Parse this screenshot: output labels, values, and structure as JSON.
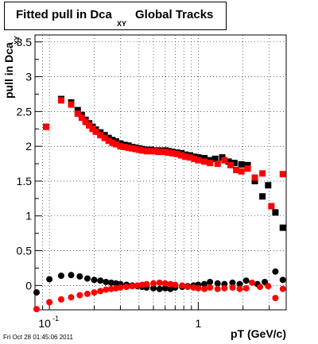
{
  "title": {
    "main": "Fitted pull in Dca",
    "subscript": "XY",
    "suffix": "Global Tracks"
  },
  "footer": "Fri Oct 28 01:45:06 2011",
  "chart_data": {
    "type": "scatter",
    "xlabel": "pT (GeV/c)",
    "ylabel": "pull in Dca",
    "ylabel_sub": "XY",
    "x_scale": "log",
    "xlim": [
      0.08,
      3.9
    ],
    "ylim": [
      -0.35,
      3.6
    ],
    "x_tick_labels": [
      {
        "value": 0.1,
        "base": "10",
        "exp": "-1"
      },
      {
        "value": 1,
        "base": "1",
        "exp": ""
      }
    ],
    "y_ticks": [
      0,
      0.5,
      1,
      1.5,
      2,
      2.5,
      3,
      3.5
    ],
    "y_tick_labels": [
      "0",
      "0.5",
      "1",
      "1.5",
      "2",
      "2.5",
      "3",
      "3.5"
    ],
    "grid": true,
    "colors": {
      "black": "#000000",
      "red": "#ff0000"
    },
    "series": [
      {
        "marker": "square",
        "color": "#000000",
        "points": [
          [
            0.095,
            2.28
          ],
          [
            0.12,
            2.68
          ],
          [
            0.14,
            2.63
          ],
          [
            0.155,
            2.52
          ],
          [
            0.165,
            2.45
          ],
          [
            0.175,
            2.38
          ],
          [
            0.185,
            2.33
          ],
          [
            0.195,
            2.28
          ],
          [
            0.205,
            2.24
          ],
          [
            0.22,
            2.2
          ],
          [
            0.235,
            2.16
          ],
          [
            0.25,
            2.12
          ],
          [
            0.265,
            2.09
          ],
          [
            0.28,
            2.07
          ],
          [
            0.3,
            2.04
          ],
          [
            0.32,
            2.02
          ],
          [
            0.34,
            2.01
          ],
          [
            0.36,
            1.99
          ],
          [
            0.38,
            1.98
          ],
          [
            0.4,
            1.97
          ],
          [
            0.42,
            1.96
          ],
          [
            0.45,
            1.95
          ],
          [
            0.48,
            1.95
          ],
          [
            0.51,
            1.94
          ],
          [
            0.54,
            1.94
          ],
          [
            0.57,
            1.93
          ],
          [
            0.6,
            1.94
          ],
          [
            0.63,
            1.93
          ],
          [
            0.67,
            1.92
          ],
          [
            0.72,
            1.91
          ],
          [
            0.77,
            1.9
          ],
          [
            0.82,
            1.88
          ],
          [
            0.88,
            1.87
          ],
          [
            0.94,
            1.85
          ],
          [
            1.0,
            1.84
          ],
          [
            1.1,
            1.83
          ],
          [
            1.2,
            1.8
          ],
          [
            1.3,
            1.82
          ],
          [
            1.45,
            1.84
          ],
          [
            1.6,
            1.78
          ],
          [
            1.75,
            1.76
          ],
          [
            1.95,
            1.74
          ],
          [
            2.15,
            1.73
          ],
          [
            2.4,
            1.5
          ],
          [
            2.7,
            1.28
          ],
          [
            2.95,
            1.44
          ],
          [
            3.3,
            1.05
          ],
          [
            3.7,
            0.83
          ]
        ]
      },
      {
        "marker": "square",
        "color": "#ff0000",
        "points": [
          [
            0.095,
            2.28
          ],
          [
            0.12,
            2.66
          ],
          [
            0.14,
            2.6
          ],
          [
            0.155,
            2.47
          ],
          [
            0.165,
            2.41
          ],
          [
            0.175,
            2.35
          ],
          [
            0.185,
            2.3
          ],
          [
            0.195,
            2.25
          ],
          [
            0.205,
            2.21
          ],
          [
            0.22,
            2.16
          ],
          [
            0.235,
            2.12
          ],
          [
            0.25,
            2.08
          ],
          [
            0.265,
            2.05
          ],
          [
            0.28,
            2.03
          ],
          [
            0.3,
            2.0
          ],
          [
            0.32,
            1.99
          ],
          [
            0.34,
            1.98
          ],
          [
            0.36,
            1.97
          ],
          [
            0.38,
            1.96
          ],
          [
            0.4,
            1.95
          ],
          [
            0.42,
            1.94
          ],
          [
            0.45,
            1.93
          ],
          [
            0.48,
            1.93
          ],
          [
            0.51,
            1.93
          ],
          [
            0.54,
            1.92
          ],
          [
            0.57,
            1.92
          ],
          [
            0.6,
            1.92
          ],
          [
            0.63,
            1.91
          ],
          [
            0.67,
            1.9
          ],
          [
            0.72,
            1.89
          ],
          [
            0.77,
            1.87
          ],
          [
            0.82,
            1.85
          ],
          [
            0.88,
            1.84
          ],
          [
            0.94,
            1.82
          ],
          [
            1.0,
            1.8
          ],
          [
            1.1,
            1.78
          ],
          [
            1.2,
            1.76
          ],
          [
            1.35,
            1.75
          ],
          [
            1.5,
            1.8
          ],
          [
            1.65,
            1.73
          ],
          [
            1.8,
            1.66
          ],
          [
            1.95,
            1.64
          ],
          [
            2.15,
            1.68
          ],
          [
            2.4,
            1.55
          ],
          [
            2.7,
            1.61
          ],
          [
            3.1,
            1.14
          ],
          [
            3.7,
            1.6
          ]
        ]
      },
      {
        "marker": "circle",
        "color": "#000000",
        "points": [
          [
            0.082,
            -0.1
          ],
          [
            0.1,
            0.09
          ],
          [
            0.12,
            0.14
          ],
          [
            0.14,
            0.15
          ],
          [
            0.16,
            0.13
          ],
          [
            0.18,
            0.1
          ],
          [
            0.2,
            0.08
          ],
          [
            0.22,
            0.07
          ],
          [
            0.24,
            0.05
          ],
          [
            0.26,
            0.04
          ],
          [
            0.28,
            0.03
          ],
          [
            0.3,
            0.02
          ],
          [
            0.33,
            0.01
          ],
          [
            0.36,
            0.0
          ],
          [
            0.39,
            -0.01
          ],
          [
            0.42,
            -0.02
          ],
          [
            0.45,
            -0.03
          ],
          [
            0.5,
            -0.04
          ],
          [
            0.55,
            -0.05
          ],
          [
            0.6,
            -0.04
          ],
          [
            0.65,
            -0.05
          ],
          [
            0.7,
            -0.03
          ],
          [
            0.78,
            -0.02
          ],
          [
            0.85,
            -0.01
          ],
          [
            0.93,
            0.0
          ],
          [
            1.0,
            0.01
          ],
          [
            1.1,
            0.02
          ],
          [
            1.2,
            0.05
          ],
          [
            1.35,
            0.03
          ],
          [
            1.5,
            0.02
          ],
          [
            1.7,
            0.04
          ],
          [
            1.9,
            0.02
          ],
          [
            2.1,
            0.07
          ],
          [
            2.5,
            0.02
          ],
          [
            2.8,
            0.05
          ],
          [
            3.3,
            0.2
          ],
          [
            3.7,
            0.08
          ]
        ]
      },
      {
        "marker": "circle",
        "color": "#ff0000",
        "points": [
          [
            0.082,
            -0.34
          ],
          [
            0.1,
            -0.24
          ],
          [
            0.12,
            -0.2
          ],
          [
            0.14,
            -0.17
          ],
          [
            0.16,
            -0.14
          ],
          [
            0.18,
            -0.12
          ],
          [
            0.2,
            -0.1
          ],
          [
            0.22,
            -0.08
          ],
          [
            0.24,
            -0.06
          ],
          [
            0.26,
            -0.05
          ],
          [
            0.28,
            -0.04
          ],
          [
            0.3,
            -0.03
          ],
          [
            0.33,
            -0.02
          ],
          [
            0.36,
            -0.01
          ],
          [
            0.39,
            0.0
          ],
          [
            0.42,
            0.01
          ],
          [
            0.45,
            0.02
          ],
          [
            0.5,
            0.03
          ],
          [
            0.55,
            0.04
          ],
          [
            0.6,
            0.03
          ],
          [
            0.65,
            0.02
          ],
          [
            0.7,
            0.01
          ],
          [
            0.78,
            0.0
          ],
          [
            0.85,
            -0.02
          ],
          [
            0.93,
            -0.03
          ],
          [
            1.0,
            -0.04
          ],
          [
            1.1,
            -0.05
          ],
          [
            1.2,
            -0.03
          ],
          [
            1.35,
            -0.05
          ],
          [
            1.5,
            -0.04
          ],
          [
            1.7,
            -0.03
          ],
          [
            1.9,
            -0.05
          ],
          [
            2.1,
            -0.04
          ],
          [
            2.3,
            0.04
          ],
          [
            2.6,
            -0.02
          ],
          [
            2.95,
            -0.01
          ],
          [
            3.3,
            -0.18
          ],
          [
            3.7,
            -0.05
          ]
        ]
      }
    ]
  }
}
